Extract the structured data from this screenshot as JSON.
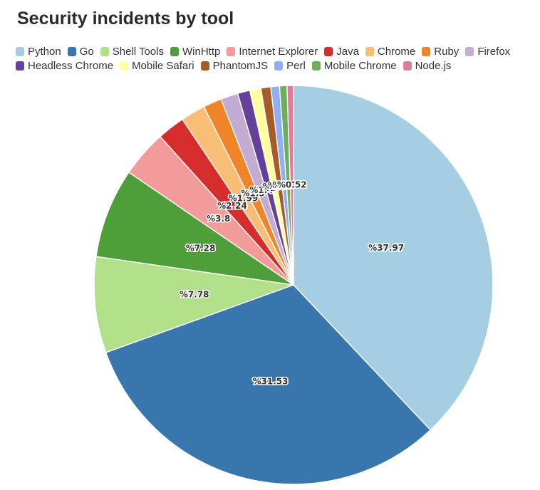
{
  "chart_data": {
    "type": "pie",
    "title": "Security incidents by tool",
    "label_prefix": "%",
    "categories": [
      "Python",
      "Go",
      "Shell Tools",
      "WinHttp",
      "Internet Explorer",
      "Java",
      "Chrome",
      "Ruby",
      "Firefox",
      "Headless Chrome",
      "Mobile Safari",
      "PhantomJS",
      "Perl",
      "Mobile Chrome",
      "Node.js"
    ],
    "values": [
      37.97,
      31.53,
      7.78,
      7.28,
      3.8,
      2.24,
      1.99,
      1.5,
      1.4,
      1.0,
      0.9,
      0.8,
      0.7,
      0.6,
      0.52
    ],
    "colors": [
      "#a6cee3",
      "#3a76ae",
      "#b2df8a",
      "#4e9e3a",
      "#f29b9a",
      "#d62c2c",
      "#f8be76",
      "#f08428",
      "#c3acd4",
      "#63409a",
      "#ffff9f",
      "#a85b2a",
      "#8eaef5",
      "#6cae5a",
      "#e2799f"
    ],
    "legend_position": "top-left",
    "start_angle": "12 o'clock, clockwise"
  }
}
